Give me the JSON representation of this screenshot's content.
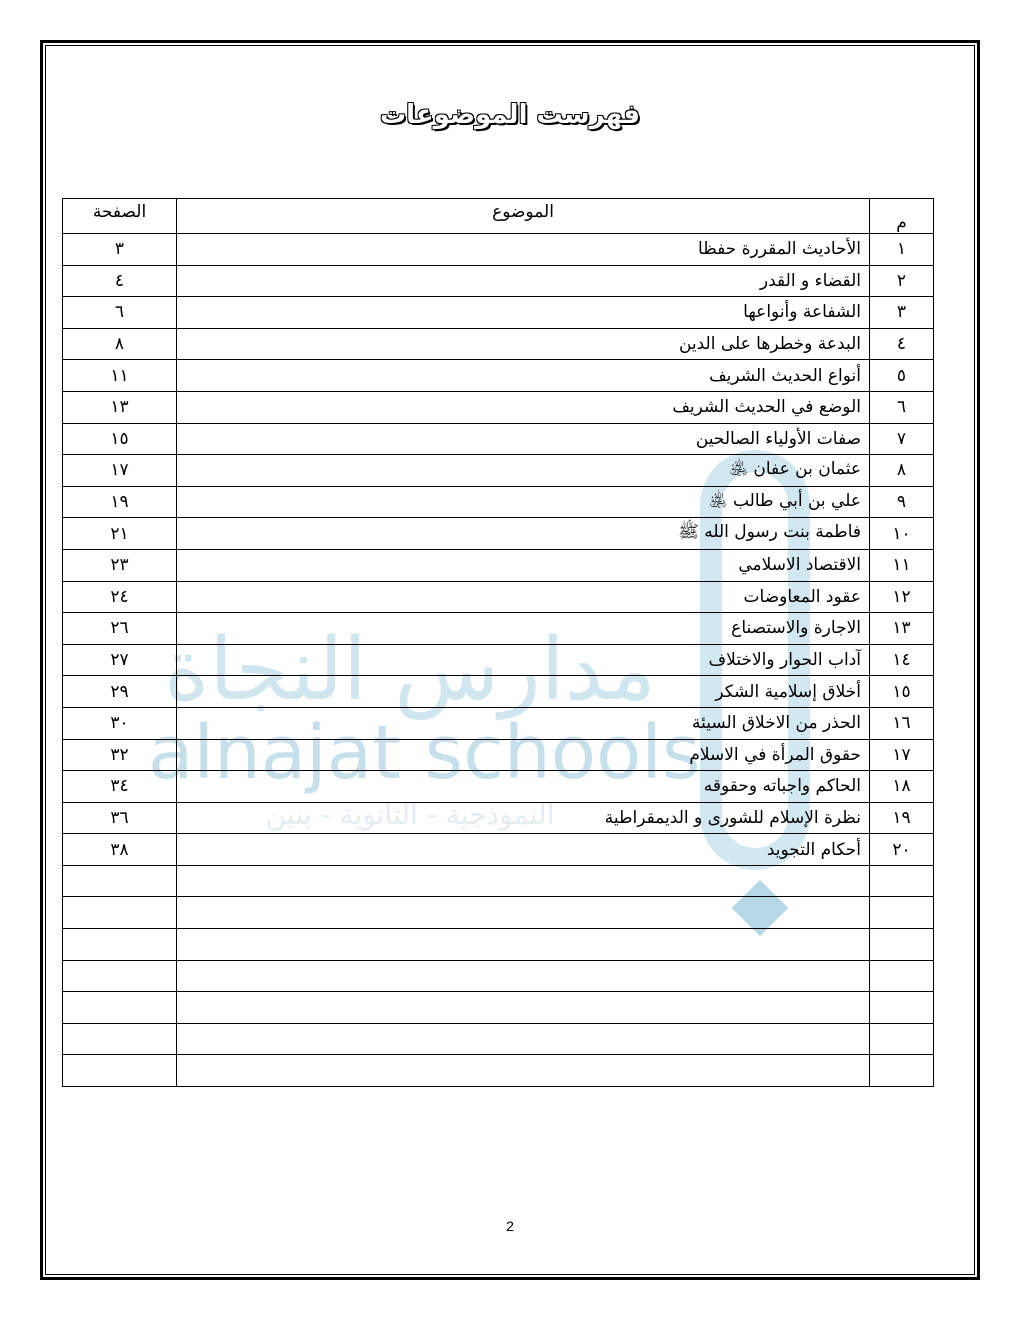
{
  "title": "فهرست الموضوعات",
  "watermark": {
    "arabic": "مدارس النجاة",
    "english": "alnajat schools",
    "subtitle": "النموذجية - الثانوية - بنين"
  },
  "table": {
    "headers": {
      "num": "م",
      "topic": "الموضوع",
      "page": "الصفحة"
    },
    "rows": [
      {
        "num": "١",
        "topic": "الأحاديث المقررة حفظا",
        "page": "٣"
      },
      {
        "num": "٢",
        "topic": "القضاء و القدر",
        "page": "٤"
      },
      {
        "num": "٣",
        "topic": "الشفاعة وأنواعها",
        "page": "٦"
      },
      {
        "num": "٤",
        "topic": "البدعة وخطرها على الدين",
        "page": "٨"
      },
      {
        "num": "٥",
        "topic": "أنواع الحديث الشريف",
        "page": "١١"
      },
      {
        "num": "٦",
        "topic": "الوضع في الحديث الشريف",
        "page": "١٣"
      },
      {
        "num": "٧",
        "topic": "صفات الأولياء الصالحين",
        "page": "١٥"
      },
      {
        "num": "٨",
        "topic": "عثمان بن عفان ﵁",
        "page": "١٧"
      },
      {
        "num": "٩",
        "topic": "علي بن أبي طالب ﵁",
        "page": "١٩"
      },
      {
        "num": "١٠",
        "topic": "فاطمة بنت رسول الله ﷺ",
        "page": "٢١"
      },
      {
        "num": "١١",
        "topic": "الاقتصاد الاسلامي",
        "page": "٢٣"
      },
      {
        "num": "١٢",
        "topic": "عقود المعاوضات",
        "page": "٢٤"
      },
      {
        "num": "١٣",
        "topic": "الاجارة والاستصناع",
        "page": "٢٦"
      },
      {
        "num": "١٤",
        "topic": "آداب الحوار والاختلاف",
        "page": "٢٧"
      },
      {
        "num": "١٥",
        "topic": "أخلاق إسلامية الشكر",
        "page": "٢٩"
      },
      {
        "num": "١٦",
        "topic": "الحذر من الاخلاق السيئة",
        "page": "٣٠"
      },
      {
        "num": "١٧",
        "topic": "حقوق المرأة في الاسلام",
        "page": "٣٢"
      },
      {
        "num": "١٨",
        "topic": "الحاكم واجباته وحقوقه",
        "page": "٣٤"
      },
      {
        "num": "١٩",
        "topic": "نظرة الإسلام للشورى و الديمقراطية",
        "page": "٣٦"
      },
      {
        "num": "٢٠",
        "topic": "أحكام التجويد",
        "page": "٣٨"
      },
      {
        "num": "",
        "topic": "",
        "page": ""
      },
      {
        "num": "",
        "topic": "",
        "page": ""
      },
      {
        "num": "",
        "topic": "",
        "page": ""
      },
      {
        "num": "",
        "topic": "",
        "page": ""
      },
      {
        "num": "",
        "topic": "",
        "page": ""
      },
      {
        "num": "",
        "topic": "",
        "page": ""
      },
      {
        "num": "",
        "topic": "",
        "page": ""
      }
    ]
  },
  "page_number": "2"
}
